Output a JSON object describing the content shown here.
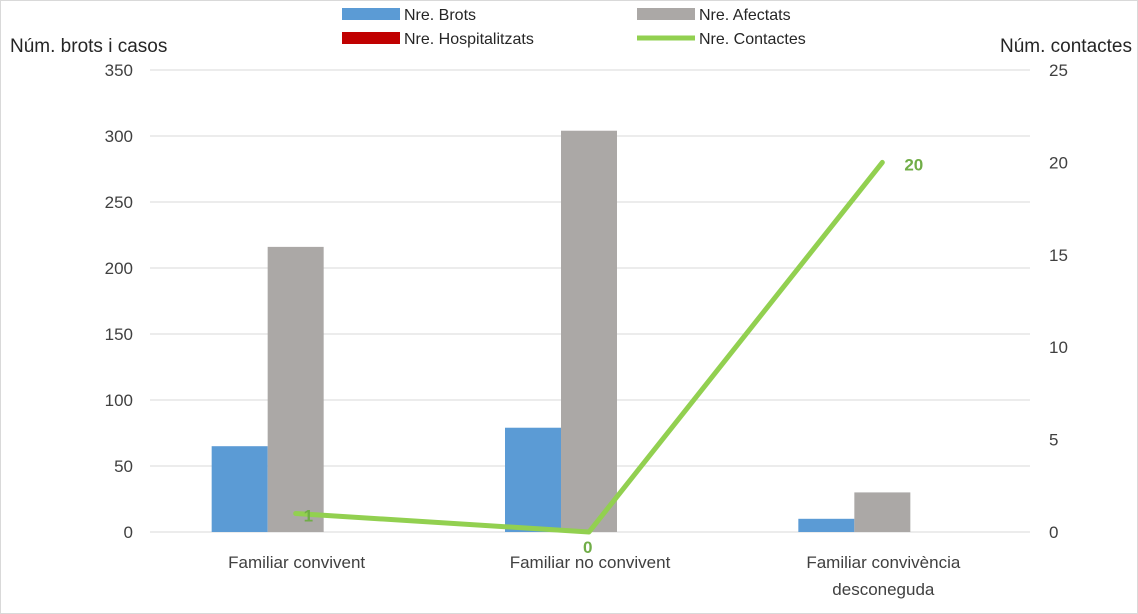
{
  "chart_data": {
    "type": "bar",
    "categories": [
      [
        "Familiar convivent"
      ],
      [
        "Familiar no convivent"
      ],
      [
        "Familiar convivència",
        "desconeguda"
      ]
    ],
    "y_left": {
      "label": "Núm. brots i casos",
      "ylim": [
        0,
        350
      ],
      "ticks": [
        "0",
        "50",
        "100",
        "150",
        "200",
        "250",
        "300",
        "350"
      ]
    },
    "y_right": {
      "label": "Núm. contactes",
      "ylim": [
        0,
        25
      ],
      "ticks": [
        "0",
        "5",
        "10",
        "15",
        "20",
        "25"
      ]
    },
    "series": [
      {
        "name": "Nre. Brots",
        "type": "bar",
        "axis": "left",
        "color": "#5B9BD5",
        "values": [
          65,
          79,
          10
        ]
      },
      {
        "name": "Nre. Afectats",
        "type": "bar",
        "axis": "left",
        "color": "#ABA8A6",
        "values": [
          216,
          304,
          30
        ]
      },
      {
        "name": "Nre. Hospitalitzats",
        "type": "bar",
        "axis": "left",
        "color": "#C00000",
        "values": [
          0,
          0,
          0
        ]
      },
      {
        "name": "Nre.  Contactes",
        "type": "line",
        "axis": "right",
        "color": "#92D050",
        "values": [
          1,
          0,
          20
        ],
        "data_labels": [
          "1",
          "0",
          "20"
        ]
      }
    ],
    "grid": true,
    "legend_position": "top"
  }
}
